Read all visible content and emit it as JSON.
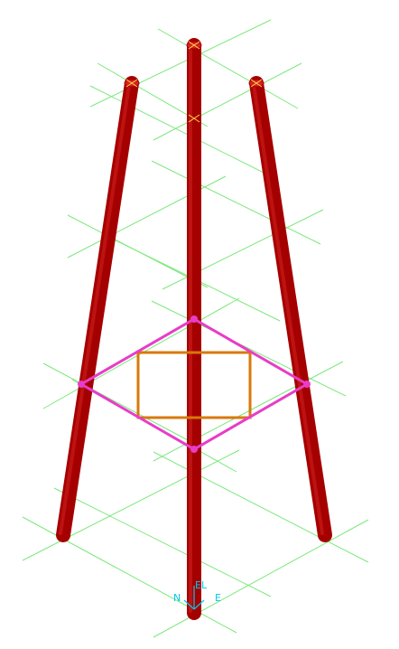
{
  "viewport": {
    "background_color": "#ffffff",
    "gridline_color": "#7ce87c",
    "leg_color": "#a50000",
    "leg_highlight_color": "#d42020",
    "leg_end_marker_color": "#ffd84a",
    "bracing_color": "#e83cc8",
    "inner_frame_color": "#d8780a",
    "compass_color": "#00c8e8"
  },
  "compass": {
    "north_label": "N",
    "elevation_label": "EL",
    "east_label": "E"
  }
}
